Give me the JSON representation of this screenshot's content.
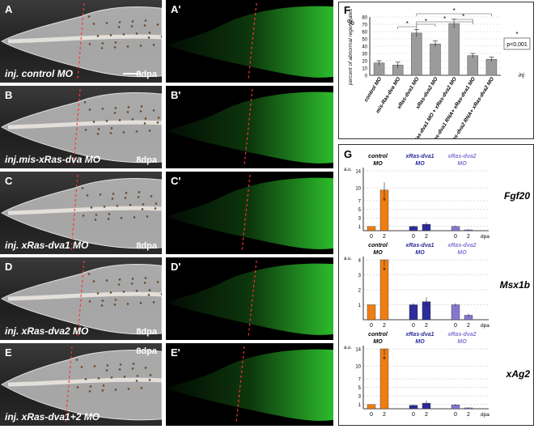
{
  "panels": [
    {
      "letter": "A",
      "caption": "inj. control MO",
      "dpa": "8dpa"
    },
    {
      "letter": "B",
      "caption": "inj.mis-xRas-dva MO",
      "dpa": "8dpa"
    },
    {
      "letter": "C",
      "caption": "inj. xRas-dva1 MO",
      "dpa": "8dpa"
    },
    {
      "letter": "D",
      "caption": "inj. xRas-dva2 MO",
      "dpa": "8dpa"
    },
    {
      "letter": "E",
      "caption": "inj. xRas-dva1+2 MO",
      "dpa": "8dpa"
    }
  ],
  "fluo_panels": [
    "A'",
    "B'",
    "C'",
    "D'",
    "E'"
  ],
  "colors": {
    "control": "#ee7d12",
    "dva1": "#2e2b9a",
    "dva2": "#8577cf",
    "fluo": "#33dd33",
    "cut": "#ff3333"
  },
  "panel_f": {
    "letter": "F",
    "unit": "%",
    "ylabel": "percent of abnormal regenerates",
    "legend": "p<0,001",
    "inj": "inj",
    "chart_data": {
      "type": "bar",
      "categories": [
        "control MO",
        "mis-Ras-dva MO",
        "xRas-dva1 MO",
        "xRas-dva2 MO",
        "xRas-dva1 MO + xRas-dva2 MO",
        "xRas-dva1 RNA+ xRas-dva1 MO",
        "xRas-dva2 RNA+ xRas-dva2 MO"
      ],
      "values": [
        17,
        14,
        58,
        43,
        71,
        27,
        22
      ],
      "errors": [
        3,
        4,
        5,
        4,
        6,
        3,
        3
      ],
      "yticks": [
        0,
        10,
        20,
        30,
        40,
        50,
        60,
        70,
        80
      ],
      "ylim": [
        0,
        80
      ],
      "grid": true
    }
  },
  "panel_g": {
    "letter": "G",
    "groups": [
      {
        "line1": "control",
        "line2": "MO"
      },
      {
        "line1": "xRas-dva1",
        "line2": "MO"
      },
      {
        "line1": "xRas-dva2",
        "line2": "MO"
      }
    ],
    "dpa_label": "dpa",
    "unit": "a.u.",
    "charts": [
      {
        "gene": "Fgf20",
        "yticks": [
          "1",
          "3",
          "5",
          "7",
          "10",
          "14"
        ],
        "values": [
          1,
          9.5,
          1,
          1.5,
          1,
          0.2
        ],
        "errors": [
          0,
          1.8,
          0.2,
          0.5,
          0.2,
          0.1
        ]
      },
      {
        "gene": "Msx1b",
        "yticks": [
          "1",
          "2",
          "3",
          "4"
        ],
        "values": [
          1,
          4.2,
          1,
          1.2,
          1,
          0.3
        ],
        "errors": [
          0,
          0.6,
          0.1,
          0.3,
          0.1,
          0.1
        ]
      },
      {
        "gene": "xAg2",
        "yticks": [
          "1",
          "3",
          "5",
          "7",
          "10",
          "14"
        ],
        "values": [
          1,
          14.5,
          0.8,
          1.3,
          0.9,
          0.2
        ],
        "errors": [
          0,
          2,
          0.2,
          0.6,
          0.2,
          0.1
        ]
      }
    ],
    "xticks": [
      "0",
      "2",
      "0",
      "2",
      "0",
      "2"
    ],
    "star": "*"
  }
}
